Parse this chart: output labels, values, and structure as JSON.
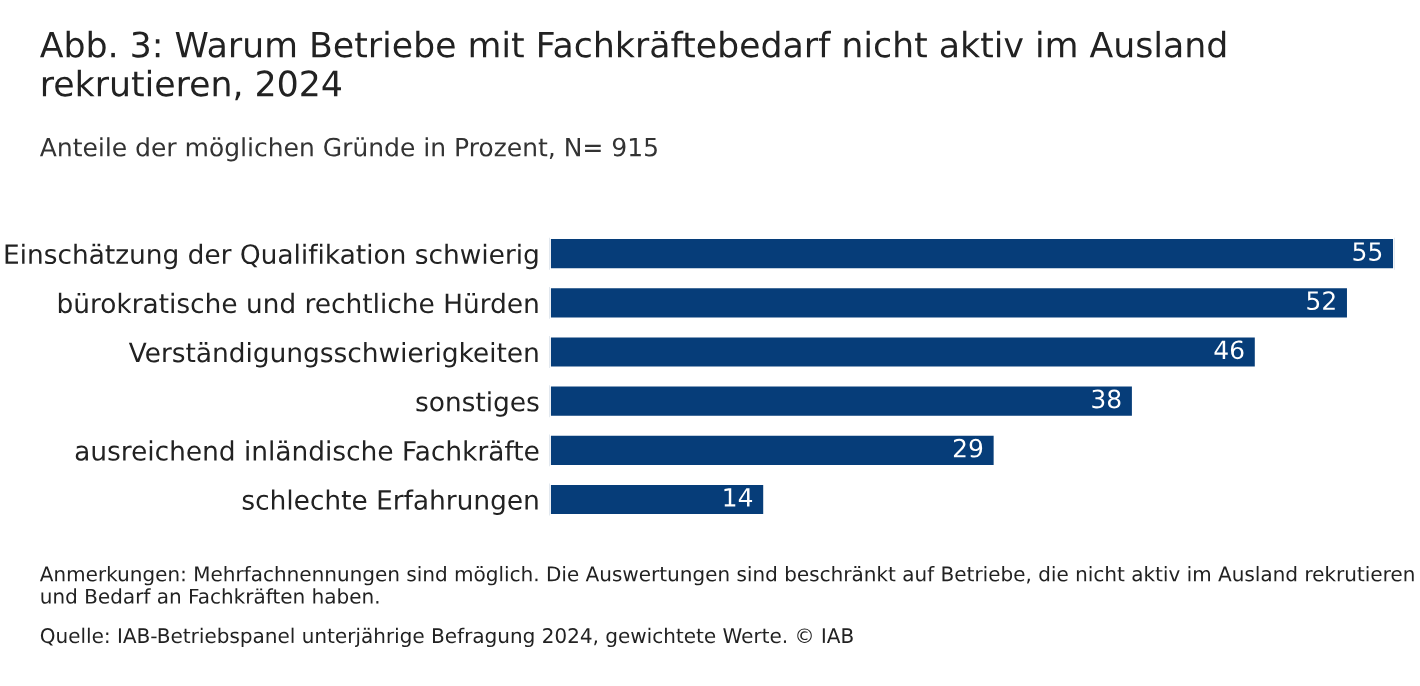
{
  "chart_data": {
    "type": "bar",
    "orientation": "horizontal",
    "title": "Abb. 3: Warum Betriebe mit Fachkräftebedarf nicht aktiv im Ausland rekrutieren, 2024",
    "subtitle": "Anteile der möglichen Gründe in Prozent, N= 915",
    "categories": [
      "Einschätzung der Qualifikation schwierig",
      "bürokratische und rechtliche Hürden",
      "Verständigungsschwierigkeiten",
      "sonstiges",
      "ausreichend inländische Fachkräfte",
      "schlechte Erfahrungen"
    ],
    "values": [
      55,
      52,
      46,
      38,
      29,
      14
    ],
    "color": "#063d79",
    "data_labels": true,
    "tick_labels": "y",
    "grid": false,
    "legend": false,
    "annotations": [
      "Anmerkungen: Mehrfachnennungen sind möglich. Die Auswertungen sind beschränkt auf Betriebe, die nicht aktiv im Ausland rekrutieren und Bedarf an Fachkräften haben.",
      "Quelle: IAB-Betriebspanel unterjährige Befragung 2024, gewichtete Werte. © IAB"
    ]
  }
}
